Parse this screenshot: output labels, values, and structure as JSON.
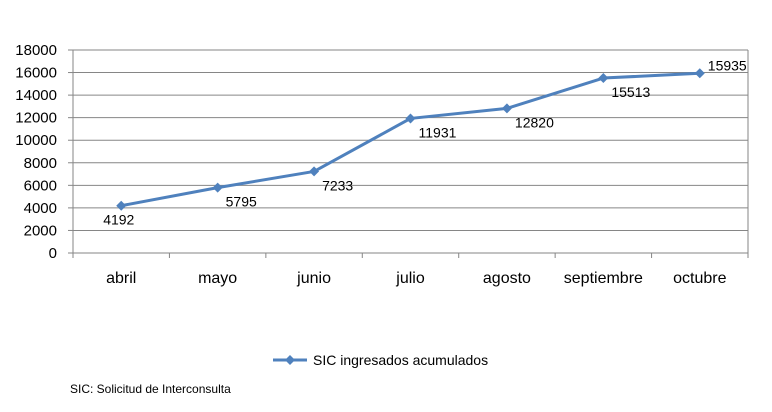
{
  "chart_data": {
    "type": "line",
    "categories": [
      "abril",
      "mayo",
      "junio",
      "julio",
      "agosto",
      "septiembre",
      "octubre"
    ],
    "series": [
      {
        "name": "SIC ingresados acumulados",
        "values": [
          4192,
          5795,
          7233,
          11931,
          12820,
          15513,
          15935
        ],
        "data_labels": [
          "4192",
          "5795",
          "7233",
          "11931",
          "12820",
          "15513",
          "15935"
        ]
      }
    ],
    "y_ticks": [
      "0",
      "2000",
      "4000",
      "6000",
      "8000",
      "10000",
      "12000",
      "14000",
      "16000",
      "18000"
    ],
    "ylim": [
      0,
      18000
    ],
    "grid": true,
    "legend": "bottom",
    "colors": {
      "series": "#4F81BD",
      "grid": "#868686",
      "axis": "#868686"
    }
  },
  "footnote": "SIC: Solicitud de Interconsulta"
}
